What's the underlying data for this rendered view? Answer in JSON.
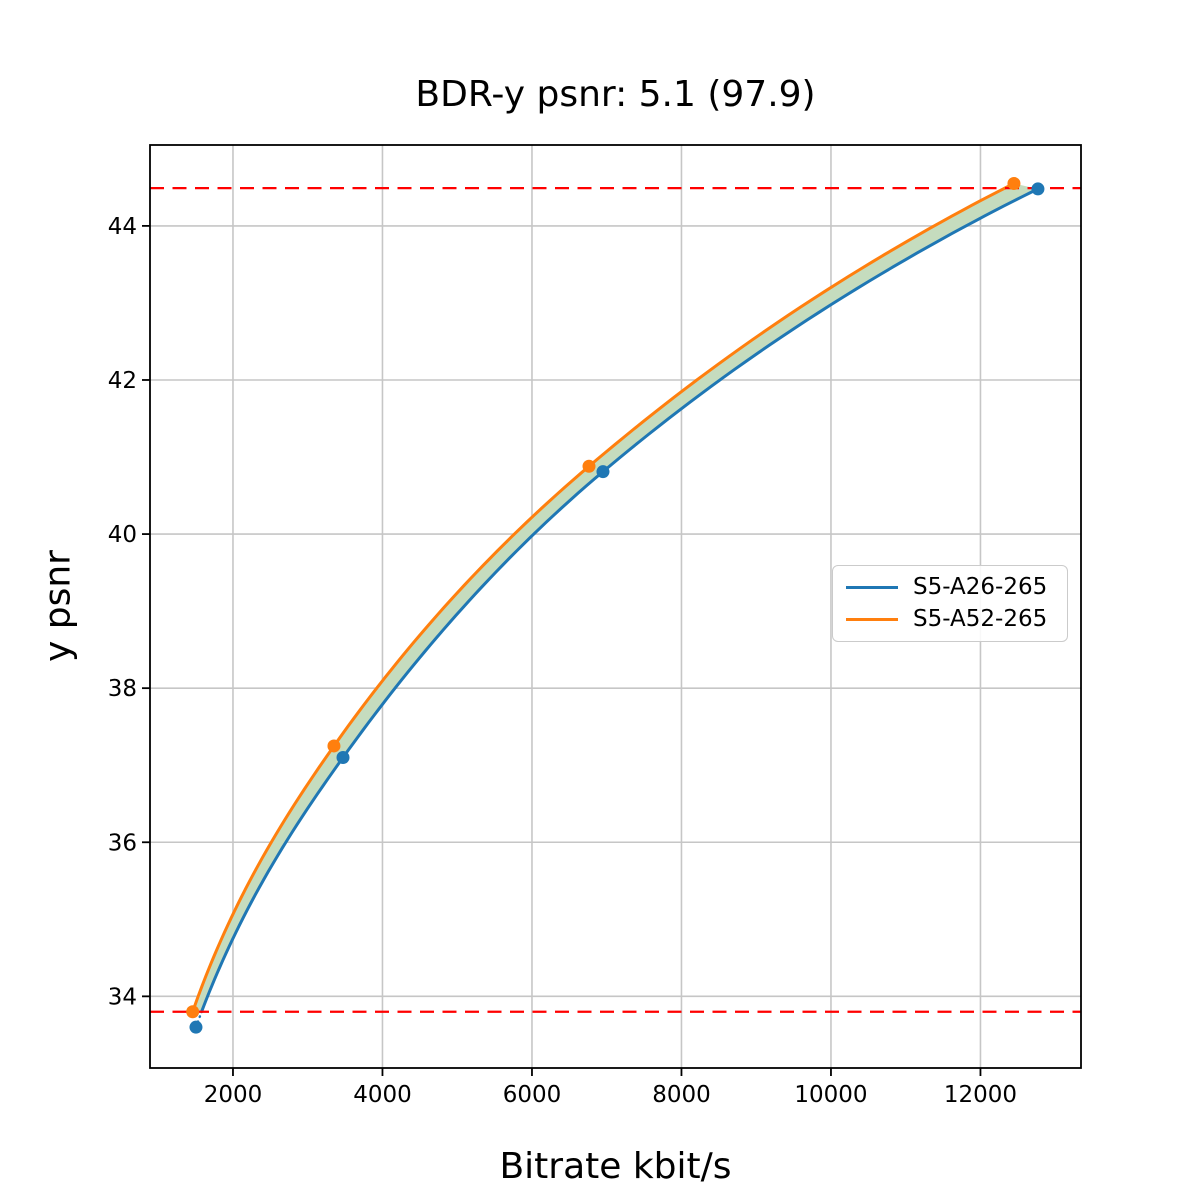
{
  "figure": {
    "background": "#ffffff"
  },
  "chart_data": {
    "type": "line",
    "title": "BDR-y psnr: 5.1 (97.9)",
    "xlabel": "Bitrate kbit/s",
    "ylabel": "y psnr",
    "xlim": [
      890,
      13345
    ],
    "ylim": [
      33.07,
      45.05
    ],
    "x_ticks": [
      2000,
      4000,
      6000,
      8000,
      10000,
      12000
    ],
    "y_ticks": [
      34,
      36,
      38,
      40,
      42,
      44
    ],
    "grid": true,
    "grid_color": "#c6c6c6",
    "spine_color": "#000000",
    "series": [
      {
        "name": "S5-A26-265",
        "color": "#1f77b4",
        "x": [
          1505,
          3472,
          6950,
          12769
        ],
        "y": [
          33.6,
          37.1,
          40.81,
          44.48
        ]
      },
      {
        "name": "S5-A52-265",
        "color": "#ff7f0e",
        "x": [
          1461,
          3351,
          6763,
          12448
        ],
        "y": [
          33.8,
          37.25,
          40.88,
          44.55
        ]
      }
    ],
    "fill_between": {
      "color": "#c5dcbe"
    },
    "ref_lines": {
      "upper": 44.49,
      "lower": 33.8,
      "color": "#ff0000",
      "style": "dashed"
    },
    "legend_position": "center-right"
  }
}
